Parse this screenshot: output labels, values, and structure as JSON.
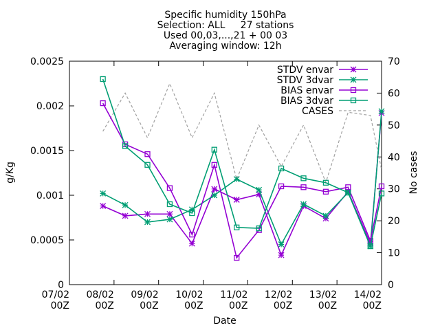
{
  "chart_data": {
    "type": "line",
    "title_lines": [
      "Specific humidity 150hPa",
      "Selection: ALL     27 stations",
      "Used 00,03,...,21 + 00 03",
      "Averaging window: 12h"
    ],
    "xlabel": "Date",
    "ylabel": "g/Kg",
    "y2label": "No cases",
    "xlim": [
      0,
      7
    ],
    "ylim": [
      0,
      0.0025
    ],
    "y2lim": [
      0,
      70
    ],
    "x_ticks": [
      {
        "x": 0,
        "line1": "07/02",
        "line2": "00Z"
      },
      {
        "x": 1,
        "line1": "08/02",
        "line2": "00Z"
      },
      {
        "x": 2,
        "line1": "09/02",
        "line2": "00Z"
      },
      {
        "x": 3,
        "line1": "10/02",
        "line2": "00Z"
      },
      {
        "x": 4,
        "line1": "11/02",
        "line2": "00Z"
      },
      {
        "x": 5,
        "line1": "12/02",
        "line2": "00Z"
      },
      {
        "x": 6,
        "line1": "13/02",
        "line2": "00Z"
      },
      {
        "x": 7,
        "line1": "14/02",
        "line2": "00Z"
      }
    ],
    "y_ticks": [
      {
        "v": 0,
        "label": "0"
      },
      {
        "v": 0.0005,
        "label": "0.0005"
      },
      {
        "v": 0.001,
        "label": "0.001"
      },
      {
        "v": 0.0015,
        "label": "0.0015"
      },
      {
        "v": 0.002,
        "label": "0.002"
      },
      {
        "v": 0.0025,
        "label": "0.0025"
      }
    ],
    "y2_ticks": [
      {
        "v": 0,
        "label": "0"
      },
      {
        "v": 10,
        "label": "10"
      },
      {
        "v": 20,
        "label": "20"
      },
      {
        "v": 30,
        "label": "30"
      },
      {
        "v": 40,
        "label": "40"
      },
      {
        "v": 50,
        "label": "50"
      },
      {
        "v": 60,
        "label": "60"
      },
      {
        "v": 70,
        "label": "70"
      }
    ],
    "legend_position": "top-right",
    "grid": false,
    "series": [
      {
        "name": "STDV envar",
        "color": "#9400d3",
        "marker": "star",
        "dash": "",
        "axis": "y",
        "x": [
          0.75,
          1.25,
          1.75,
          2.25,
          2.75,
          3.25,
          3.75,
          4.25,
          4.75,
          5.25,
          5.75,
          6.25,
          6.75,
          7.0
        ],
        "y": [
          0.00088,
          0.00077,
          0.00079,
          0.00079,
          0.00046,
          0.00107,
          0.00095,
          0.00101,
          0.00033,
          0.00088,
          0.00074,
          0.00104,
          0.00046,
          0.00192
        ]
      },
      {
        "name": "STDV 3dvar",
        "color": "#009e73",
        "marker": "star",
        "dash": "",
        "axis": "y",
        "x": [
          0.75,
          1.25,
          1.75,
          2.25,
          2.75,
          3.25,
          3.75,
          4.25,
          4.75,
          5.25,
          5.75,
          6.25,
          6.75,
          7.0
        ],
        "y": [
          0.00102,
          0.00089,
          0.0007,
          0.00073,
          0.00084,
          0.001,
          0.00118,
          0.00106,
          0.00045,
          0.0009,
          0.00077,
          0.00103,
          0.00043,
          0.00194
        ]
      },
      {
        "name": "BIAS envar",
        "color": "#9400d3",
        "marker": "box",
        "dash": "",
        "axis": "y",
        "x": [
          0.75,
          1.25,
          1.75,
          2.25,
          2.75,
          3.25,
          3.75,
          4.25,
          4.75,
          5.25,
          5.75,
          6.25,
          6.75,
          7.0
        ],
        "y": [
          0.00203,
          0.00157,
          0.00146,
          0.00108,
          0.00056,
          0.00134,
          0.0003,
          0.00061,
          0.0011,
          0.00109,
          0.00104,
          0.00109,
          0.00049,
          0.0011
        ]
      },
      {
        "name": "BIAS 3dvar",
        "color": "#009e73",
        "marker": "box",
        "dash": "",
        "axis": "y",
        "x": [
          0.75,
          1.25,
          1.75,
          2.25,
          2.75,
          3.25,
          3.75,
          4.25,
          4.75,
          5.25,
          5.75,
          6.25,
          6.75,
          7.0
        ],
        "y": [
          0.0023,
          0.00155,
          0.00134,
          0.0009,
          0.0008,
          0.00151,
          0.00064,
          0.00063,
          0.0013,
          0.00119,
          0.00114,
          0.00103,
          0.00043,
          0.00102
        ]
      },
      {
        "name": "CASES",
        "color": "#a0a0a0",
        "marker": "none",
        "dash": "4,3",
        "axis": "y2",
        "x": [
          0.75,
          1.25,
          1.75,
          2.25,
          2.75,
          3.25,
          3.75,
          4.25,
          4.75,
          5.25,
          5.75,
          6.25,
          6.75,
          7.0
        ],
        "y": [
          48,
          60,
          46,
          63,
          46,
          60,
          33,
          50,
          37,
          50,
          32,
          54,
          53,
          36
        ]
      }
    ]
  }
}
